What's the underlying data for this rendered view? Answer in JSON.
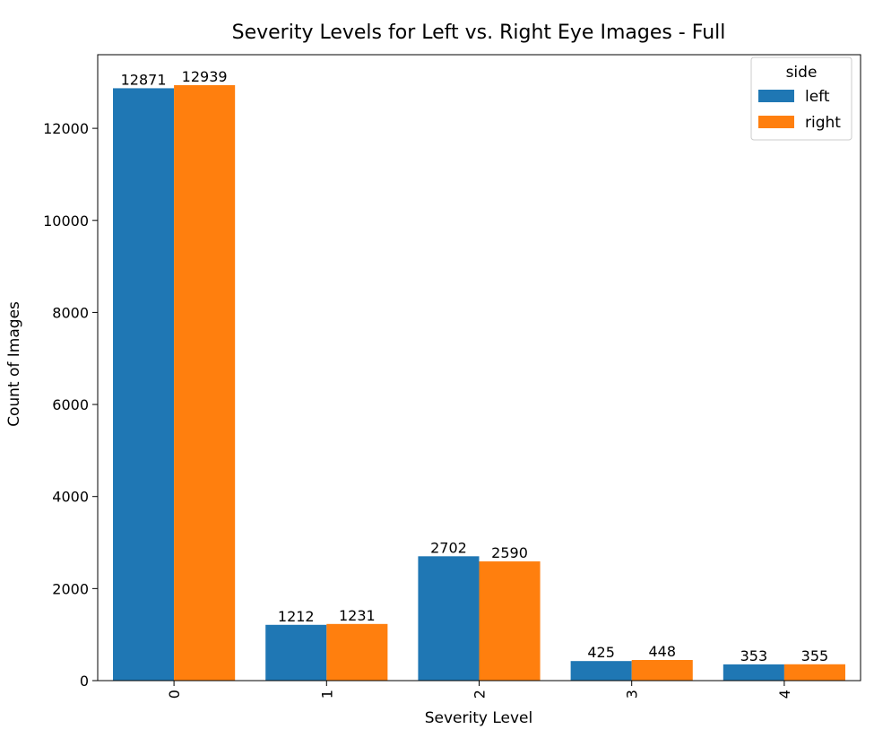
{
  "chart_data": {
    "type": "bar",
    "title": "Severity Levels for Left vs. Right Eye Images - Full",
    "xlabel": "Severity Level",
    "ylabel": "Count of Images",
    "categories": [
      "0",
      "1",
      "2",
      "3",
      "4"
    ],
    "series": [
      {
        "name": "left",
        "color": "#1f77b4",
        "values": [
          12871,
          1212,
          2702,
          425,
          353
        ]
      },
      {
        "name": "right",
        "color": "#ff7f0e",
        "values": [
          12939,
          1231,
          2590,
          448,
          355
        ]
      }
    ],
    "ylim": [
      0,
      13600
    ],
    "yticks": [
      0,
      2000,
      4000,
      6000,
      8000,
      10000,
      12000
    ],
    "ytick_labels": [
      "0",
      "2000",
      "4000",
      "6000",
      "8000",
      "10000",
      "12000"
    ],
    "grid": false,
    "legend": {
      "title": "side",
      "placement": "top-right"
    }
  }
}
